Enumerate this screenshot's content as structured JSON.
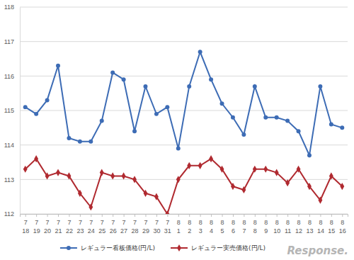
{
  "chart_data": {
    "type": "line",
    "categories": [
      "7\n18",
      "7\n19",
      "7\n20",
      "7\n21",
      "7\n22",
      "7\n23",
      "7\n24",
      "7\n25",
      "7\n26",
      "7\n27",
      "7\n28",
      "7\n29",
      "7\n30",
      "7\n31",
      "8\n1",
      "8\n2",
      "8\n3",
      "8\n4",
      "8\n5",
      "8\n6",
      "8\n7",
      "8\n8",
      "8\n9",
      "8\n10",
      "8\n11",
      "8\n12",
      "8\n13",
      "8\n14",
      "8\n15",
      "8\n16"
    ],
    "series": [
      {
        "name": "レギュラー看板価格(円/L)",
        "color": "#3d6cb5",
        "marker": "circle",
        "values": [
          115.1,
          114.9,
          115.3,
          116.3,
          114.2,
          114.1,
          114.1,
          114.7,
          116.1,
          115.9,
          114.4,
          115.7,
          114.9,
          115.1,
          113.9,
          115.7,
          116.7,
          115.9,
          115.2,
          114.8,
          114.3,
          115.7,
          114.8,
          114.8,
          114.7,
          114.4,
          113.7,
          115.7,
          114.6,
          114.5
        ]
      },
      {
        "name": "レギュラー実売価格(円/L)",
        "color": "#b02a30",
        "marker": "diamond",
        "values": [
          113.3,
          113.6,
          113.1,
          113.2,
          113.1,
          112.6,
          112.2,
          113.2,
          113.1,
          113.1,
          113.0,
          112.6,
          112.5,
          112.0,
          113.0,
          113.4,
          113.4,
          113.6,
          113.3,
          112.8,
          112.7,
          113.3,
          113.3,
          113.2,
          112.9,
          113.3,
          112.8,
          112.4,
          113.1,
          112.8
        ]
      }
    ],
    "ylim": [
      112,
      118
    ],
    "yticks": [
      112,
      113,
      114,
      115,
      116,
      117,
      118
    ],
    "grid": true,
    "legend": "bottom",
    "annotations": [
      "Response."
    ]
  }
}
